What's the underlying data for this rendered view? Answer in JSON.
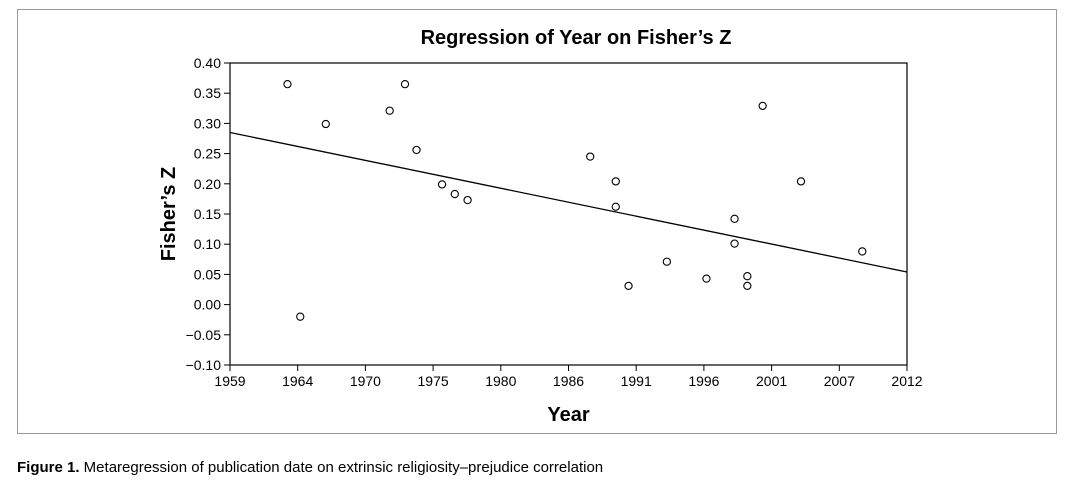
{
  "chart_data": {
    "type": "scatter",
    "title": "Regression of Year on Fisher’s Z",
    "xlabel": "Year",
    "ylabel": "Fisher’s Z",
    "xlim": [
      1959,
      2012
    ],
    "ylim": [
      -0.1,
      0.4
    ],
    "x_ticks": [
      "1959",
      "1964",
      "1970",
      "1975",
      "1980",
      "1986",
      "1991",
      "1996",
      "2001",
      "2007",
      "2012"
    ],
    "y_ticks": [
      "−0.10",
      "−0.05",
      "0.00",
      "0.05",
      "0.10",
      "0.15",
      "0.20",
      "0.25",
      "0.30",
      "0.35",
      "0.40"
    ],
    "grid": false,
    "points": [
      {
        "x": 1963.5,
        "y": 0.365
      },
      {
        "x": 1964.5,
        "y": -0.02
      },
      {
        "x": 1966.5,
        "y": 0.299
      },
      {
        "x": 1971.5,
        "y": 0.321
      },
      {
        "x": 1972.7,
        "y": 0.365
      },
      {
        "x": 1973.6,
        "y": 0.256
      },
      {
        "x": 1975.6,
        "y": 0.199
      },
      {
        "x": 1976.6,
        "y": 0.183
      },
      {
        "x": 1977.6,
        "y": 0.173
      },
      {
        "x": 1987.2,
        "y": 0.245
      },
      {
        "x": 1989.2,
        "y": 0.204
      },
      {
        "x": 1989.2,
        "y": 0.162
      },
      {
        "x": 1990.2,
        "y": 0.031
      },
      {
        "x": 1993.2,
        "y": 0.071
      },
      {
        "x": 1996.3,
        "y": 0.043
      },
      {
        "x": 1998.5,
        "y": 0.142
      },
      {
        "x": 1998.5,
        "y": 0.101
      },
      {
        "x": 1999.5,
        "y": 0.047
      },
      {
        "x": 1999.5,
        "y": 0.031
      },
      {
        "x": 2000.7,
        "y": 0.329
      },
      {
        "x": 2003.7,
        "y": 0.204
      },
      {
        "x": 2008.5,
        "y": 0.088
      }
    ],
    "regression_line": {
      "x": [
        1959,
        2012
      ],
      "y": [
        0.285,
        0.054
      ]
    }
  },
  "caption": {
    "label": "Figure 1.",
    "text": " Metaregression of publication date on extrinsic religiosity–prejudice correlation"
  }
}
